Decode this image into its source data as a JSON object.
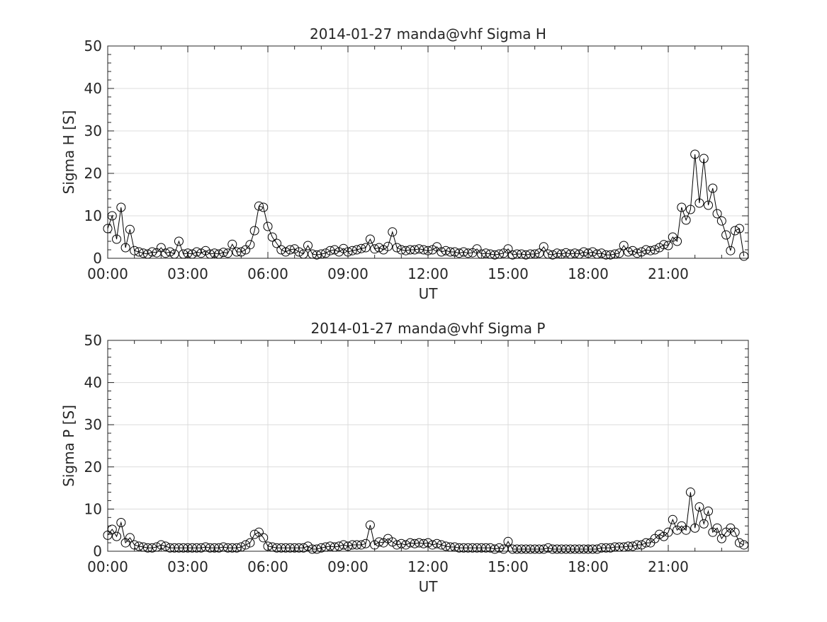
{
  "chart_data": [
    {
      "type": "line",
      "title": "2014-01-27  manda@vhf Sigma H",
      "xlabel": "UT",
      "ylabel": "Sigma H [S]",
      "xlim": [
        0,
        24
      ],
      "ylim": [
        0,
        50
      ],
      "x_unit": "hours UT",
      "x_step_minutes": 10,
      "xticks": [
        0,
        3,
        6,
        9,
        12,
        15,
        18,
        21
      ],
      "xtick_labels": [
        "00:00",
        "03:00",
        "06:00",
        "09:00",
        "12:00",
        "15:00",
        "18:00",
        "21:00"
      ],
      "yticks": [
        0,
        10,
        20,
        30,
        40,
        50
      ],
      "ytick_labels": [
        "0",
        "10",
        "20",
        "30",
        "40",
        "50"
      ],
      "grid": true,
      "marker": "open-circle",
      "color": "#000000",
      "values": [
        7,
        10,
        4.5,
        12,
        2.5,
        6.8,
        1.8,
        1.5,
        1.2,
        1,
        1.5,
        1.3,
        2.5,
        1.2,
        1.5,
        1,
        4,
        1,
        1.2,
        1,
        1.5,
        1.2,
        1.8,
        1,
        1.2,
        1,
        1.4,
        1.2,
        3.3,
        1.5,
        1.5,
        2,
        3.2,
        6.5,
        12.3,
        12,
        7.5,
        5,
        3.5,
        2,
        1.5,
        2,
        2.2,
        1.5,
        1,
        3,
        1,
        0.8,
        1,
        1.2,
        1.8,
        2,
        1.5,
        2.3,
        1.5,
        1.8,
        2,
        2.3,
        2.5,
        4.5,
        2.2,
        2.5,
        2,
        2.8,
        6.2,
        2.5,
        2,
        1.8,
        2,
        2,
        2.2,
        2,
        1.8,
        2,
        2.7,
        1.5,
        1.8,
        1.5,
        1.5,
        1.2,
        1.5,
        1.2,
        1.3,
        2.2,
        1,
        1.2,
        1,
        0.8,
        1,
        1.2,
        2.2,
        0.8,
        1,
        1,
        0.8,
        1,
        1,
        1.2,
        2.7,
        1,
        0.8,
        1.2,
        1,
        1.3,
        1,
        1.2,
        1,
        1.5,
        1.2,
        1.5,
        1,
        1.2,
        0.8,
        0.8,
        1,
        1.2,
        3,
        1.5,
        1.8,
        1.2,
        1.5,
        2,
        1.8,
        2,
        2.5,
        3.2,
        3,
        5,
        4,
        12,
        9,
        11.5,
        24.5,
        13,
        23.5,
        12.5,
        16.5,
        10.5,
        8.8,
        5.5,
        1.8,
        6.5,
        7,
        0.5
      ]
    },
    {
      "type": "line",
      "title": "2014-01-27  manda@vhf Sigma P",
      "xlabel": "UT",
      "ylabel": "Sigma P [S]",
      "xlim": [
        0,
        24
      ],
      "ylim": [
        0,
        50
      ],
      "x_unit": "hours UT",
      "x_step_minutes": 10,
      "xticks": [
        0,
        3,
        6,
        9,
        12,
        15,
        18,
        21
      ],
      "xtick_labels": [
        "00:00",
        "03:00",
        "06:00",
        "09:00",
        "12:00",
        "15:00",
        "18:00",
        "21:00"
      ],
      "yticks": [
        0,
        10,
        20,
        30,
        40,
        50
      ],
      "ytick_labels": [
        "0",
        "10",
        "20",
        "30",
        "40",
        "50"
      ],
      "grid": true,
      "marker": "open-circle",
      "color": "#000000",
      "values": [
        3.8,
        5.2,
        3.5,
        6.8,
        2,
        3.2,
        1.5,
        1.2,
        1,
        0.8,
        0.8,
        1,
        1.5,
        1.2,
        0.8,
        0.8,
        0.8,
        0.8,
        0.8,
        0.8,
        0.8,
        0.8,
        1,
        0.8,
        0.8,
        0.8,
        1,
        0.8,
        0.8,
        0.8,
        1,
        1.5,
        2,
        4,
        4.5,
        3.2,
        1.2,
        1,
        0.8,
        0.8,
        0.8,
        0.8,
        0.8,
        0.8,
        0.8,
        1.2,
        0.5,
        0.5,
        0.8,
        1,
        1.2,
        1,
        1.2,
        1.5,
        1.2,
        1.5,
        1.5,
        1.5,
        1.8,
        6.2,
        1.5,
        2.2,
        2,
        3,
        2.2,
        1.5,
        1.8,
        1.5,
        2,
        1.8,
        2,
        1.8,
        2,
        1.5,
        1.8,
        1.5,
        1.2,
        1,
        1,
        0.8,
        0.8,
        0.8,
        0.8,
        0.8,
        0.8,
        0.8,
        0.8,
        0.5,
        0.8,
        0.5,
        2.3,
        0.5,
        0.5,
        0.5,
        0.5,
        0.5,
        0.5,
        0.5,
        0.5,
        0.8,
        0.5,
        0.5,
        0.5,
        0.5,
        0.5,
        0.5,
        0.5,
        0.5,
        0.5,
        0.5,
        0.5,
        0.8,
        0.8,
        0.8,
        1,
        1,
        1,
        1.2,
        1.2,
        1.5,
        1.5,
        2,
        2,
        3,
        4,
        3.5,
        4.5,
        7.5,
        5,
        6,
        5,
        14,
        5.5,
        10.5,
        6.5,
        9.5,
        4.5,
        5.5,
        3,
        4.5,
        5.5,
        4.5,
        2,
        1.5
      ]
    }
  ]
}
